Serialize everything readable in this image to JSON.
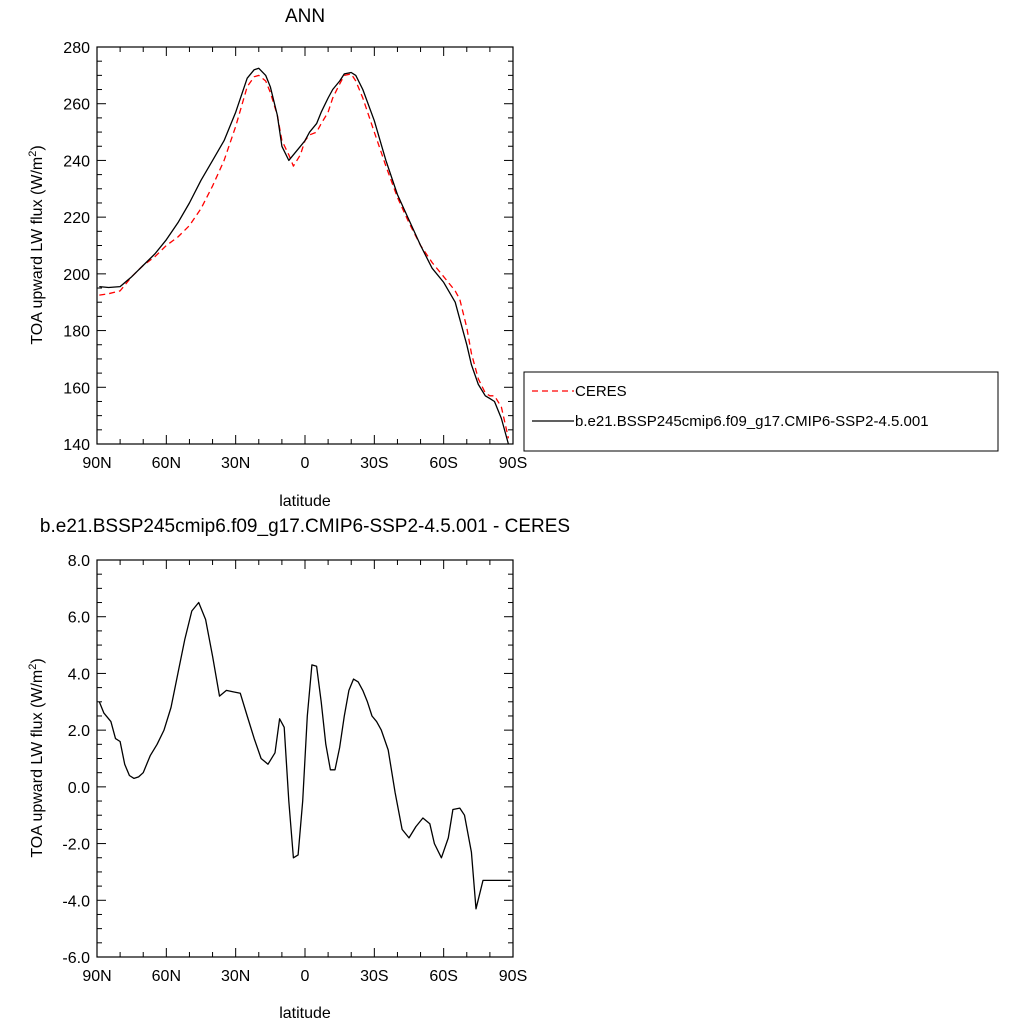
{
  "chart_data": [
    {
      "type": "line",
      "title": "ANN",
      "xlabel": "latitude",
      "ylabel_main": "TOA upward LW flux (W/m",
      "ylabel_sup": "2",
      "ylabel_close": ")",
      "xlim": [
        90,
        -90
      ],
      "ylim": [
        140,
        280
      ],
      "x_ticks": [
        {
          "value": 90,
          "label": "90N"
        },
        {
          "value": 60,
          "label": "60N"
        },
        {
          "value": 30,
          "label": "30N"
        },
        {
          "value": 0,
          "label": "0"
        },
        {
          "value": -30,
          "label": "30S"
        },
        {
          "value": -60,
          "label": "60S"
        },
        {
          "value": -90,
          "label": "90S"
        }
      ],
      "y_ticks": [
        {
          "value": 280,
          "label": "280"
        },
        {
          "value": 260,
          "label": "260"
        },
        {
          "value": 240,
          "label": "240"
        },
        {
          "value": 220,
          "label": "220"
        },
        {
          "value": 200,
          "label": "200"
        },
        {
          "value": 180,
          "label": "180"
        },
        {
          "value": 160,
          "label": "160"
        },
        {
          "value": 140,
          "label": "140"
        }
      ],
      "legend_position": "right",
      "series": [
        {
          "name": "CERES",
          "color": "#ff0000",
          "style": "dashed",
          "x": [
            89,
            85,
            80,
            75,
            70,
            65,
            60,
            55,
            50,
            45,
            40,
            35,
            30,
            25,
            22,
            20,
            17,
            15,
            12,
            10,
            7,
            5,
            2,
            0,
            -2,
            -5,
            -7,
            -10,
            -12,
            -15,
            -17,
            -20,
            -22,
            -25,
            -30,
            -35,
            -40,
            -45,
            -50,
            -55,
            -60,
            -65,
            -67,
            -70,
            -72,
            -75,
            -78,
            -80,
            -82,
            -85,
            -88
          ],
          "y": [
            192.5,
            193,
            194,
            199,
            203,
            206,
            210,
            213,
            217,
            223,
            231,
            240,
            252,
            266,
            269.5,
            270,
            268,
            264,
            256,
            247,
            242,
            238,
            242,
            247,
            249,
            250,
            253,
            257,
            262,
            267,
            270,
            270.5,
            268,
            262,
            250,
            238,
            227,
            218,
            210,
            204,
            199,
            194,
            191,
            181,
            172,
            163,
            158,
            157,
            157,
            153,
            142
          ]
        },
        {
          "name": "b.e21.BSSP245cmip6.f09_g17.CMIP6-SSP2-4.5.001",
          "color": "#000000",
          "style": "solid",
          "x": [
            89,
            85,
            80,
            75,
            70,
            65,
            60,
            55,
            50,
            45,
            40,
            35,
            30,
            25,
            22,
            20,
            17,
            15,
            12,
            10,
            7,
            5,
            2,
            0,
            -2,
            -5,
            -7,
            -10,
            -12,
            -15,
            -17,
            -20,
            -22,
            -25,
            -30,
            -35,
            -40,
            -45,
            -50,
            -55,
            -60,
            -65,
            -67,
            -70,
            -72,
            -75,
            -78,
            -80,
            -82,
            -85,
            -88
          ],
          "y": [
            195.5,
            195.2,
            195.5,
            199,
            203,
            207,
            212,
            218,
            225,
            233,
            240,
            247,
            257,
            269,
            272,
            272.5,
            270,
            266,
            256,
            245,
            240,
            242,
            245,
            247,
            250,
            253,
            257,
            262,
            265,
            268,
            270.5,
            271,
            270,
            265,
            254,
            240,
            228,
            219,
            210,
            202,
            197,
            190,
            184,
            175,
            168,
            161,
            157,
            156,
            155,
            149,
            140
          ]
        }
      ]
    },
    {
      "type": "line",
      "title": "b.e21.BSSP245cmip6.f09_g17.CMIP6-SSP2-4.5.001 - CERES",
      "xlabel": "latitude",
      "ylabel_main": "TOA upward LW flux (W/m",
      "ylabel_sup": "2",
      "ylabel_close": ")",
      "xlim": [
        90,
        -90
      ],
      "ylim": [
        -6.0,
        8.0
      ],
      "x_ticks": [
        {
          "value": 90,
          "label": "90N"
        },
        {
          "value": 60,
          "label": "60N"
        },
        {
          "value": 30,
          "label": "30N"
        },
        {
          "value": 0,
          "label": "0"
        },
        {
          "value": -30,
          "label": "30S"
        },
        {
          "value": -60,
          "label": "60S"
        },
        {
          "value": -90,
          "label": "90S"
        }
      ],
      "y_ticks": [
        {
          "value": 8.0,
          "label": "8.0"
        },
        {
          "value": 6.0,
          "label": "6.0"
        },
        {
          "value": 4.0,
          "label": "4.0"
        },
        {
          "value": 2.0,
          "label": "2.0"
        },
        {
          "value": 0.0,
          "label": "0.0"
        },
        {
          "value": -2.0,
          "label": "-2.0"
        },
        {
          "value": -4.0,
          "label": "-4.0"
        },
        {
          "value": -6.0,
          "label": "-6.0"
        }
      ],
      "series": [
        {
          "color": "#000000",
          "style": "solid",
          "x": [
            89,
            87,
            84,
            82,
            80,
            78,
            76,
            74,
            72,
            70,
            67,
            64,
            61,
            58,
            55,
            52,
            49,
            46,
            43,
            40,
            37,
            34,
            31,
            28,
            25,
            22,
            19,
            16,
            13,
            11,
            9,
            7,
            5,
            3,
            1,
            -1,
            -3,
            -5,
            -7,
            -9,
            -11,
            -13,
            -15,
            -17,
            -19,
            -21,
            -23,
            -25,
            -27,
            -29,
            -31,
            -33,
            -36,
            -39,
            -42,
            -45,
            -48,
            -51,
            -54,
            -56,
            -59,
            -62,
            -64,
            -67,
            -69,
            -72,
            -74,
            -77,
            -79,
            -81,
            -83,
            -85,
            -87,
            -89
          ],
          "y": [
            3.0,
            2.6,
            2.3,
            1.7,
            1.6,
            0.8,
            0.4,
            0.3,
            0.35,
            0.5,
            1.1,
            1.5,
            2.0,
            2.8,
            4.0,
            5.2,
            6.2,
            6.5,
            5.9,
            4.6,
            3.2,
            3.4,
            3.35,
            3.3,
            2.5,
            1.7,
            1.0,
            0.8,
            1.2,
            2.4,
            2.1,
            -0.5,
            -2.5,
            -2.4,
            -0.5,
            2.5,
            4.3,
            4.25,
            3.0,
            1.5,
            0.6,
            0.6,
            1.4,
            2.5,
            3.4,
            3.8,
            3.7,
            3.4,
            3.0,
            2.5,
            2.3,
            2.0,
            1.3,
            -0.2,
            -1.5,
            -1.8,
            -1.4,
            -1.1,
            -1.3,
            -2.0,
            -2.5,
            -1.8,
            -0.8,
            -0.75,
            -1.0,
            -2.3,
            -4.3,
            -3.3,
            -3.3,
            -3.3,
            -3.3,
            -3.3,
            -3.3,
            -3.3
          ]
        }
      ]
    }
  ]
}
